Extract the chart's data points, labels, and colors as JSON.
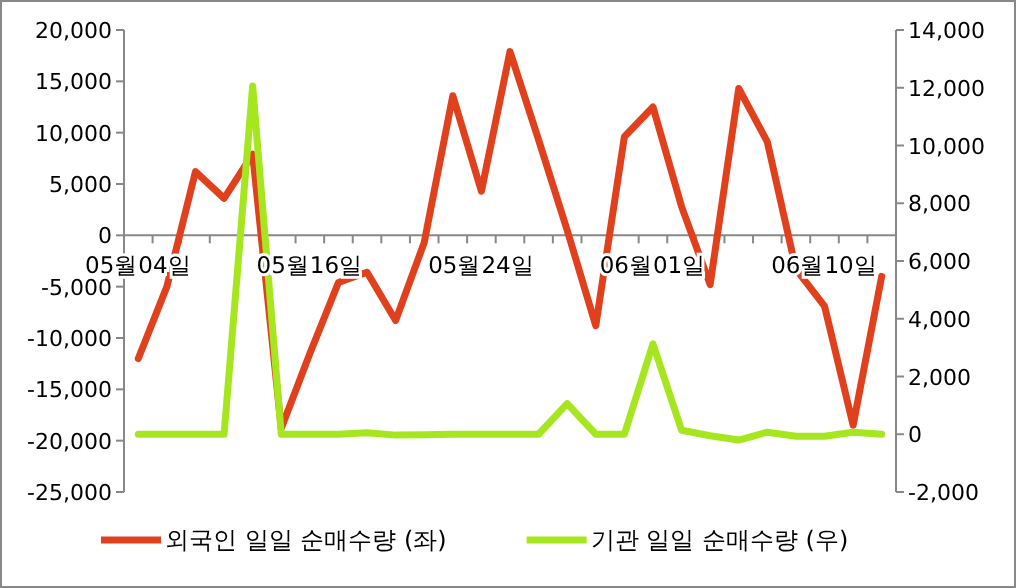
{
  "chart_data": {
    "type": "line",
    "categories": [
      "05월04일",
      null,
      null,
      null,
      null,
      null,
      "05월16일",
      null,
      null,
      null,
      null,
      null,
      "05월24일",
      null,
      null,
      null,
      null,
      null,
      "06월01일",
      null,
      null,
      null,
      null,
      null,
      "06월10일",
      null,
      null
    ],
    "series": [
      {
        "name": "외국인 일일 순매수량 (좌)",
        "color": "#e0401c",
        "axis": "y",
        "values": [
          -12000,
          -5000,
          6200,
          3600,
          7900,
          -18800,
          -11500,
          -4600,
          -3600,
          -8300,
          -700,
          13600,
          4300,
          17900,
          9300,
          500,
          -8800,
          9600,
          12500,
          2800,
          -4800,
          14300,
          9100,
          -3300,
          -6900,
          -18500,
          -4000
        ]
      },
      {
        "name": "기관 일일 순매수량 (우)",
        "color": "#a6e61e",
        "axis": "y2",
        "values": [
          0,
          0,
          0,
          0,
          12060,
          0,
          0,
          0,
          50,
          -30,
          -20,
          0,
          0,
          0,
          0,
          1060,
          0,
          0,
          3130,
          140,
          -50,
          -200,
          70,
          -70,
          -70,
          70,
          0
        ]
      }
    ],
    "ylim": [
      -25000,
      20000
    ],
    "yticks": [
      {
        "value": -25000,
        "label": "-25,000"
      },
      {
        "value": -20000,
        "label": "-20,000"
      },
      {
        "value": -15000,
        "label": "-15,000"
      },
      {
        "value": -10000,
        "label": "-10,000"
      },
      {
        "value": -5000,
        "label": "-5,000"
      },
      0,
      {
        "value": 5000,
        "label": "5,000"
      },
      {
        "value": 10000,
        "label": "10,000"
      },
      {
        "value": 15000,
        "label": "15,000"
      },
      {
        "value": 20000,
        "label": "20,000"
      }
    ],
    "y2lim": [
      -2000,
      14000
    ],
    "y2ticks": [
      {
        "value": -2000,
        "label": "-2,000"
      },
      0,
      {
        "value": 2000,
        "label": "2,000"
      },
      {
        "value": 4000,
        "label": "4,000"
      },
      {
        "value": 6000,
        "label": "6,000"
      },
      {
        "value": 8000,
        "label": "8,000"
      },
      {
        "value": 10000,
        "label": "10,000"
      },
      {
        "value": 12000,
        "label": "12,000"
      },
      {
        "value": 14000,
        "label": "14,000"
      }
    ],
    "legend": "bottom"
  }
}
